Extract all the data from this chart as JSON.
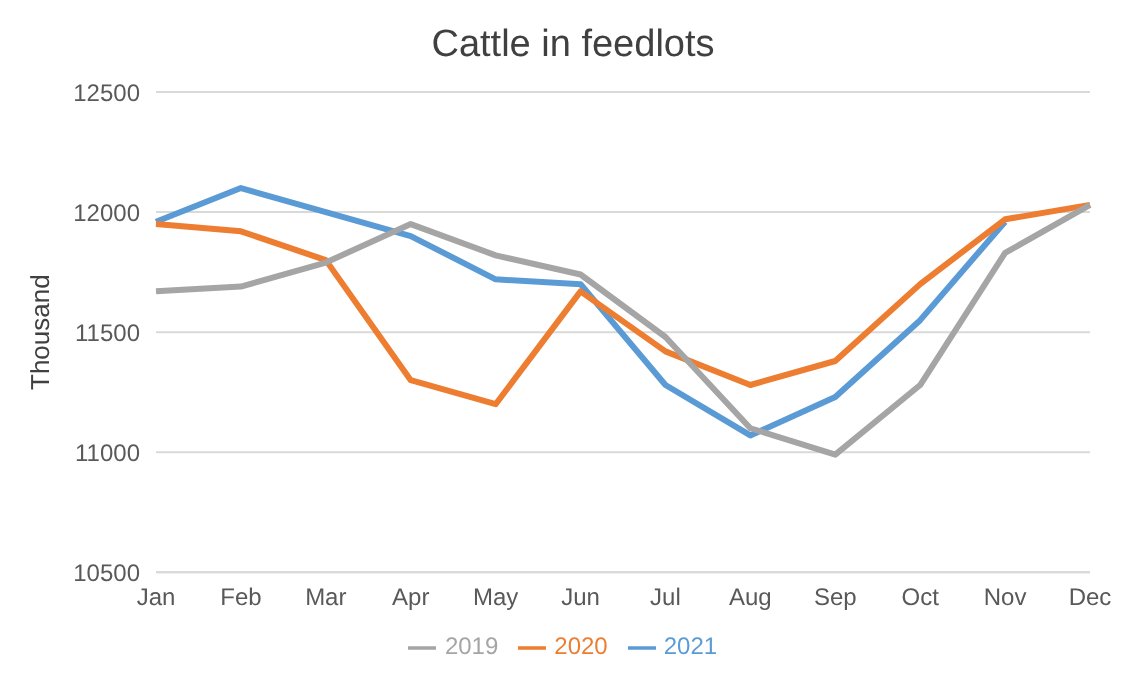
{
  "chart_data": {
    "type": "line",
    "title": "Cattle in feedlots",
    "ylabel": "Thousand",
    "categories": [
      "Jan",
      "Feb",
      "Mar",
      "Apr",
      "May",
      "Jun",
      "Jul",
      "Aug",
      "Sep",
      "Oct",
      "Nov",
      "Dec"
    ],
    "series": [
      {
        "name": "2021",
        "color": "#5b9bd5",
        "values": [
          11960,
          12100,
          12000,
          11900,
          11720,
          11700,
          11280,
          11070,
          11230,
          11550,
          11960,
          null
        ]
      },
      {
        "name": "2020",
        "color": "#ed7d31",
        "values": [
          11950,
          11920,
          11800,
          11300,
          11200,
          11670,
          11420,
          11280,
          11380,
          11700,
          11970,
          12030
        ]
      },
      {
        "name": "2019",
        "color": "#a5a5a5",
        "values": [
          11670,
          11690,
          11790,
          11950,
          11820,
          11740,
          11480,
          11100,
          10990,
          11280,
          11830,
          12030
        ]
      }
    ],
    "ylim": [
      10500,
      12500
    ],
    "yticks": [
      10500,
      11000,
      11500,
      12000,
      12500
    ],
    "grid": "y",
    "legend": "bottom",
    "marker": "none",
    "line_style": "solid"
  }
}
